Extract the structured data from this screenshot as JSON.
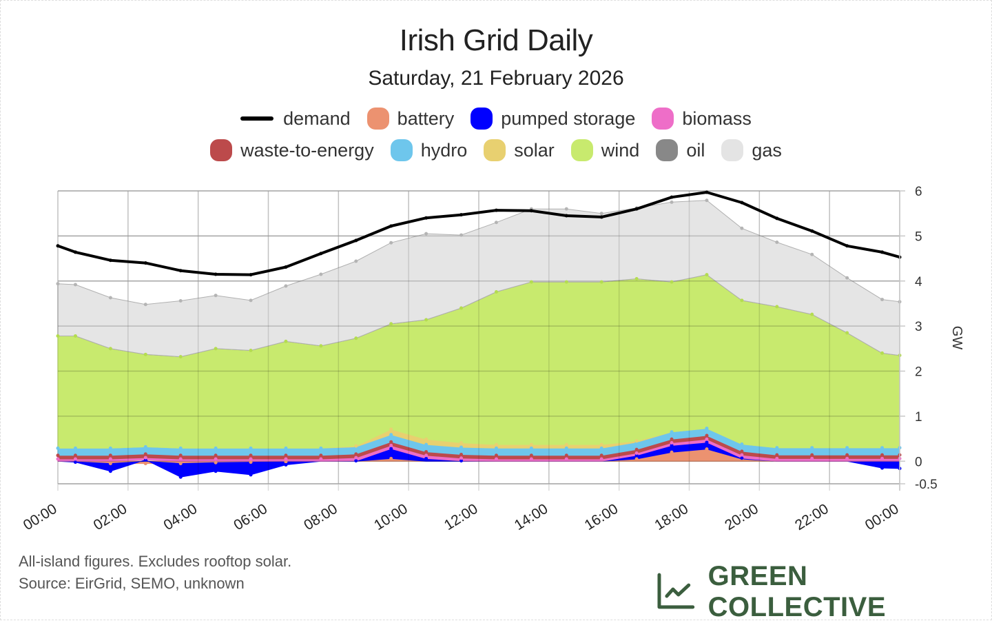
{
  "header": {
    "title": "Irish Grid Daily",
    "subtitle": "Saturday, 21 February 2026"
  },
  "legend": [
    {
      "key": "demand",
      "label": "demand",
      "color": "#000000",
      "kind": "line"
    },
    {
      "key": "battery",
      "label": "battery",
      "color": "#ec9270"
    },
    {
      "key": "pumped_storage",
      "label": "pumped storage",
      "color": "#0000ff"
    },
    {
      "key": "biomass",
      "label": "biomass",
      "color": "#ee6ec8"
    },
    {
      "key": "waste_to_energy",
      "label": "waste-to-energy",
      "color": "#bc4a4b"
    },
    {
      "key": "hydro",
      "label": "hydro",
      "color": "#6ec6ec"
    },
    {
      "key": "solar",
      "label": "solar",
      "color": "#e8d070"
    },
    {
      "key": "wind",
      "label": "wind",
      "color": "#c8ea6e"
    },
    {
      "key": "oil",
      "label": "oil",
      "color": "#888888"
    },
    {
      "key": "gas",
      "label": "gas",
      "color": "#e4e4e4"
    }
  ],
  "footer": {
    "note": "All-island figures. Excludes rooftop solar.",
    "source": "Source: EirGrid, SEMO, unknown",
    "brand": "GREEN COLLECTIVE",
    "brand_color": "#3b5e3e"
  },
  "chart_data": {
    "type": "area",
    "title": "Irish Grid Daily",
    "subtitle": "Saturday, 21 February 2026",
    "xlabel": "",
    "ylabel": "GW",
    "ylim": [
      -0.5,
      6
    ],
    "yticks": [
      -0.5,
      0,
      1,
      2,
      3,
      4,
      5,
      6
    ],
    "xticks": [
      "00:00",
      "02:00",
      "04:00",
      "06:00",
      "08:00",
      "10:00",
      "12:00",
      "14:00",
      "16:00",
      "18:00",
      "20:00",
      "22:00",
      "00:00"
    ],
    "xtick_hours": [
      0,
      2,
      4,
      6,
      8,
      10,
      12,
      14,
      16,
      18,
      20,
      22,
      24
    ],
    "grid": true,
    "legend_position": "top",
    "x_hours": [
      0,
      0.5,
      1.5,
      2.5,
      3.5,
      4.5,
      5.5,
      6.5,
      7.5,
      8.5,
      9.5,
      10.5,
      11.5,
      12.5,
      13.5,
      14.5,
      15.5,
      16.5,
      17.5,
      18.5,
      19.5,
      20.5,
      21.5,
      22.5,
      23.5,
      24
    ],
    "stack_order": [
      "battery",
      "pumped_storage",
      "biomass",
      "waste_to_energy",
      "hydro",
      "solar",
      "wind",
      "oil",
      "gas"
    ],
    "series": [
      {
        "name": "battery",
        "values": [
          0,
          -0.01,
          -0.05,
          -0.05,
          -0.05,
          -0.03,
          -0.02,
          -0.01,
          0,
          0,
          0.06,
          0,
          0,
          0,
          0,
          0,
          0,
          0.05,
          0.2,
          0.27,
          0.05,
          0,
          0,
          0,
          0,
          0
        ]
      },
      {
        "name": "pumped storage",
        "values": [
          0,
          -0.01,
          -0.17,
          0.03,
          -0.3,
          -0.19,
          -0.28,
          -0.07,
          0,
          0.01,
          0.22,
          0.06,
          0.01,
          0,
          0,
          0,
          0,
          0.08,
          0.15,
          0.15,
          0.02,
          0,
          0,
          0,
          -0.15,
          -0.16
        ]
      },
      {
        "name": "biomass",
        "values": [
          0.05,
          0.05,
          0.05,
          0.05,
          0.05,
          0.05,
          0.05,
          0.05,
          0.05,
          0.07,
          0.07,
          0.07,
          0.06,
          0.05,
          0.05,
          0.05,
          0.05,
          0.05,
          0.06,
          0.07,
          0.07,
          0.06,
          0.06,
          0.06,
          0.06,
          0.06
        ]
      },
      {
        "name": "waste-to-energy",
        "values": [
          0.08,
          0.08,
          0.08,
          0.08,
          0.08,
          0.08,
          0.08,
          0.08,
          0.08,
          0.08,
          0.08,
          0.08,
          0.08,
          0.08,
          0.08,
          0.08,
          0.08,
          0.08,
          0.08,
          0.08,
          0.08,
          0.08,
          0.08,
          0.08,
          0.08,
          0.08
        ]
      },
      {
        "name": "hydro",
        "values": [
          0.16,
          0.16,
          0.16,
          0.16,
          0.16,
          0.16,
          0.16,
          0.16,
          0.16,
          0.16,
          0.16,
          0.16,
          0.16,
          0.16,
          0.16,
          0.16,
          0.16,
          0.16,
          0.16,
          0.16,
          0.16,
          0.16,
          0.16,
          0.16,
          0.16,
          0.16
        ]
      },
      {
        "name": "solar",
        "values": [
          0,
          0,
          0,
          0,
          0,
          0,
          0,
          0,
          0,
          0.02,
          0.12,
          0.12,
          0.1,
          0.08,
          0.08,
          0.08,
          0.08,
          0.03,
          0,
          0,
          0,
          0,
          0,
          0,
          0,
          0
        ]
      },
      {
        "name": "wind",
        "values": [
          2.49,
          2.49,
          2.21,
          2.05,
          2.03,
          2.21,
          2.17,
          2.37,
          2.27,
          2.39,
          2.34,
          2.65,
          2.99,
          3.39,
          3.61,
          3.61,
          3.61,
          3.6,
          3.33,
          3.41,
          3.19,
          3.13,
          2.96,
          2.55,
          2.1,
          2.05
        ]
      },
      {
        "name": "oil",
        "values": [
          0,
          0,
          0,
          0,
          0,
          0,
          0,
          0,
          0,
          0,
          0,
          0,
          0,
          0,
          0,
          0,
          0,
          0,
          0,
          0,
          0,
          0,
          0,
          0,
          0,
          0
        ]
      },
      {
        "name": "gas",
        "values": [
          1.16,
          1.14,
          1.13,
          1.11,
          1.24,
          1.18,
          1.11,
          1.23,
          1.59,
          1.71,
          1.8,
          1.91,
          1.62,
          1.54,
          1.62,
          1.62,
          1.52,
          1.57,
          1.77,
          1.65,
          1.6,
          1.43,
          1.33,
          1.22,
          1.19,
          1.19
        ]
      }
    ],
    "demand": {
      "name": "demand",
      "values": [
        4.78,
        4.64,
        4.46,
        4.4,
        4.23,
        4.15,
        4.14,
        4.31,
        4.61,
        4.9,
        5.22,
        5.4,
        5.47,
        5.57,
        5.56,
        5.45,
        5.42,
        5.6,
        5.86,
        5.97,
        5.74,
        5.39,
        5.11,
        4.78,
        4.64,
        4.53
      ]
    }
  }
}
